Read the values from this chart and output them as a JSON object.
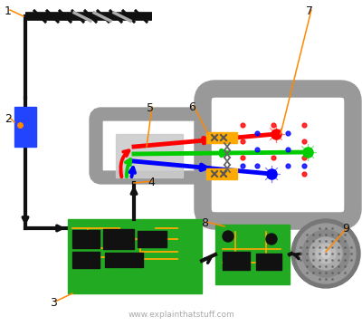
{
  "bg": "#ffffff",
  "watermark": "www.explainthatstuff.com",
  "gray": "#999999",
  "black": "#111111",
  "green": "#22aa22",
  "trace": "#ffaa00",
  "blue_box": "#2244ff",
  "shadow": "#cccccc",
  "coil": "#ffaa00",
  "red": "#ff0000",
  "lime": "#00cc00",
  "blue": "#0000ff",
  "orange": "#ff8800",
  "antenna_bar_color": "#111111",
  "silver": "#aaaaaa",
  "tube_gray": "#999999",
  "screen_white": "#ffffff",
  "gun_shadow": "#cccccc"
}
